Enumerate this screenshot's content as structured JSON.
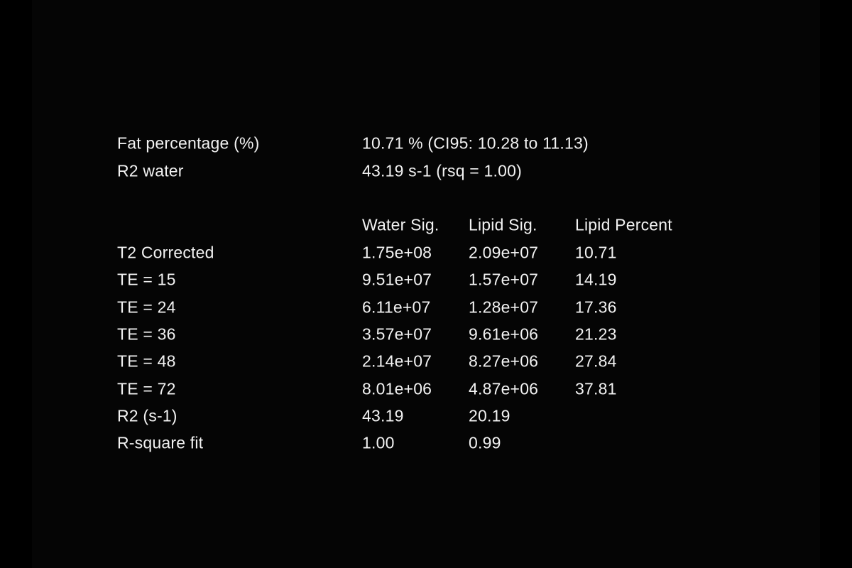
{
  "colors": {
    "background_outer": "#000000",
    "background_inner": "#050505",
    "text": "#f2f2f2"
  },
  "summary": {
    "rows": [
      {
        "label": "Fat percentage (%)",
        "value": "10.71 % (CI95: 10.28 to 11.13)"
      },
      {
        "label": "R2 water",
        "value": "43.19 s-1 (rsq = 1.00)"
      }
    ]
  },
  "table": {
    "columns": [
      "Water Sig.",
      "Lipid Sig.",
      "Lipid Percent"
    ],
    "rows": [
      {
        "label": "T2 Corrected",
        "water": "1.75e+08",
        "lipid": "2.09e+07",
        "percent": "10.71"
      },
      {
        "label": "TE = 15",
        "water": "9.51e+07",
        "lipid": "1.57e+07",
        "percent": "14.19"
      },
      {
        "label": "TE = 24",
        "water": "6.11e+07",
        "lipid": "1.28e+07",
        "percent": "17.36"
      },
      {
        "label": "TE = 36",
        "water": "3.57e+07",
        "lipid": "9.61e+06",
        "percent": "21.23"
      },
      {
        "label": "TE = 48",
        "water": "2.14e+07",
        "lipid": "8.27e+06",
        "percent": "27.84"
      },
      {
        "label": "TE = 72",
        "water": "8.01e+06",
        "lipid": "4.87e+06",
        "percent": "37.81"
      },
      {
        "label": "R2 (s-1)",
        "water": "43.19",
        "lipid": "20.19",
        "percent": ""
      },
      {
        "label": "R-square fit",
        "water": "1.00",
        "lipid": "0.99",
        "percent": ""
      }
    ]
  }
}
